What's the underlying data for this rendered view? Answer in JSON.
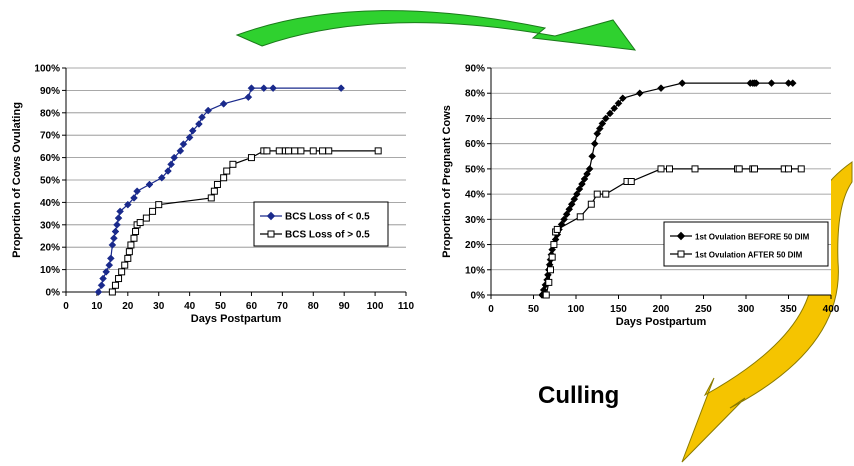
{
  "annotation": {
    "culling_label": "Culling"
  },
  "colors": {
    "green_arrow": "#2fd12f",
    "yellow_arrow": "#f5c400",
    "arrow_outline": "#8a7a00",
    "series_blue": "#1a2a8c",
    "series_black": "#000000",
    "grid": "#8c8c8c",
    "plot_bg": "#ffffff"
  },
  "chart_data": [
    {
      "type": "line",
      "title": "",
      "xlabel": "Days Postpartum",
      "ylabel": "Proportion of Cows Ovulating",
      "xlim": [
        0,
        110
      ],
      "ylim": [
        0,
        100
      ],
      "xticks": [
        0,
        10,
        20,
        30,
        40,
        50,
        60,
        70,
        80,
        90,
        100,
        110
      ],
      "yticks": [
        0,
        10,
        20,
        30,
        40,
        50,
        60,
        70,
        80,
        90,
        100
      ],
      "y_unit": "%",
      "grid": true,
      "legend_position": "center-right",
      "series": [
        {
          "name": "BCS Loss of < 0.5",
          "marker": "diamond-filled",
          "color": "#1a2a8c",
          "x": [
            10.5,
            11.5,
            12,
            13,
            14,
            14.5,
            15,
            15.5,
            16,
            16.5,
            17,
            17.5,
            20,
            22,
            23,
            27,
            31,
            33,
            34,
            35,
            37,
            38,
            40,
            41,
            43,
            44,
            46,
            51,
            59,
            60,
            64,
            67,
            89
          ],
          "y": [
            0,
            3,
            6,
            9,
            12,
            15,
            21,
            24,
            27,
            30,
            33,
            36,
            39,
            42,
            45,
            48,
            51,
            54,
            57,
            60,
            63,
            66,
            69,
            72,
            75,
            78,
            81,
            84,
            87,
            91,
            91,
            91,
            91
          ]
        },
        {
          "name": "BCS Loss of > 0.5",
          "marker": "square-open",
          "color": "#000000",
          "x": [
            15,
            16,
            17,
            18,
            19,
            20,
            20.5,
            21,
            22,
            22.5,
            23,
            24,
            26,
            28,
            30,
            47,
            48,
            49,
            51,
            52,
            54,
            60,
            64,
            65,
            69,
            71,
            72,
            74,
            76,
            80,
            83,
            85,
            101
          ],
          "y": [
            0,
            3,
            6,
            9,
            12,
            15,
            18,
            21,
            24,
            27,
            30,
            31,
            33,
            36,
            39,
            42,
            45,
            48,
            51,
            54,
            57,
            60,
            63,
            63,
            63,
            63,
            63,
            63,
            63,
            63,
            63,
            63,
            63
          ]
        }
      ]
    },
    {
      "type": "line",
      "title": "",
      "xlabel": "Days Postpartum",
      "ylabel": "Proportion of Pregnant Cows",
      "xlim": [
        0,
        400
      ],
      "ylim": [
        0,
        90
      ],
      "xticks": [
        0,
        50,
        100,
        150,
        200,
        250,
        300,
        350,
        400
      ],
      "yticks": [
        0,
        10,
        20,
        30,
        40,
        50,
        60,
        70,
        80,
        90
      ],
      "y_unit": "%",
      "grid": true,
      "legend_position": "center-right",
      "series": [
        {
          "name": "1st Ovulation BEFORE 50 DIM",
          "marker": "diamond-filled",
          "color": "#000000",
          "x": [
            60,
            62,
            64,
            66,
            67,
            68,
            69,
            70,
            71,
            72,
            74,
            76,
            78,
            80,
            83,
            86,
            89,
            92,
            95,
            98,
            101,
            104,
            107,
            110,
            113,
            116,
            119,
            122,
            125,
            128,
            131,
            135,
            140,
            145,
            150,
            155,
            175,
            200,
            225,
            305,
            308,
            310,
            312,
            330,
            350,
            355
          ],
          "y": [
            0,
            2,
            4,
            6,
            8,
            10,
            12,
            14,
            16,
            18,
            20,
            22,
            24,
            26,
            28,
            30,
            32,
            34,
            36,
            38,
            40,
            42,
            44,
            46,
            48,
            50,
            55,
            60,
            64,
            66,
            68,
            70,
            72,
            74,
            76,
            78,
            80,
            82,
            84,
            84,
            84,
            84,
            84,
            84,
            84,
            84
          ]
        },
        {
          "name": "1st Ovulation AFTER 50 DIM",
          "marker": "square-open",
          "color": "#000000",
          "x": [
            65,
            68,
            70,
            72,
            74,
            76,
            78,
            105,
            118,
            125,
            135,
            160,
            165,
            200,
            210,
            240,
            290,
            292,
            308,
            310,
            345,
            350,
            365
          ],
          "y": [
            0,
            5,
            10,
            15,
            20,
            25,
            26,
            31,
            36,
            40,
            40,
            45,
            45,
            50,
            50,
            50,
            50,
            50,
            50,
            50,
            50,
            50,
            50
          ]
        }
      ]
    }
  ]
}
